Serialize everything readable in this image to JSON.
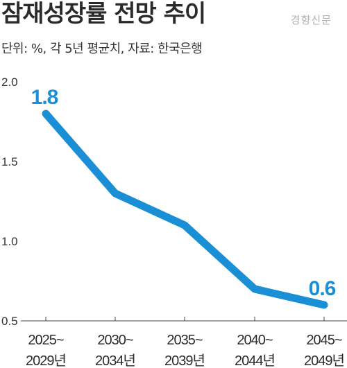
{
  "header": {
    "title": "잠재성장률 전망 추이",
    "source_logo": "경향신문",
    "subtitle": "단위: %, 각 5년 평균치, 자료: 한국은행"
  },
  "colors": {
    "line": "#1a8fd6",
    "label": "#1a8fd6",
    "axis": "#444444",
    "text": "#2b2b2b"
  },
  "chart_data": {
    "type": "line",
    "title": "잠재성장률 전망 추이",
    "subtitle": "단위: %, 각 5년 평균치, 자료: 한국은행",
    "categories": [
      [
        "2025~",
        "2029년"
      ],
      [
        "2030~",
        "2034년"
      ],
      [
        "2035~",
        "2039년"
      ],
      [
        "2040~",
        "2044년"
      ],
      [
        "2045~",
        "2049년"
      ]
    ],
    "series": [
      {
        "values": [
          1.8,
          1.3,
          1.1,
          0.7,
          0.6
        ]
      }
    ],
    "data_labels": [
      {
        "index": 0,
        "text": "1.8"
      },
      {
        "index": 4,
        "text": "0.6"
      }
    ],
    "ylim": [
      0.5,
      2.0
    ],
    "yticks": [
      "2.0",
      "1.5",
      "1.0",
      "0.5"
    ],
    "ytick_values": [
      2.0,
      1.5,
      1.0,
      0.5
    ],
    "grid": false,
    "legend": "none"
  }
}
